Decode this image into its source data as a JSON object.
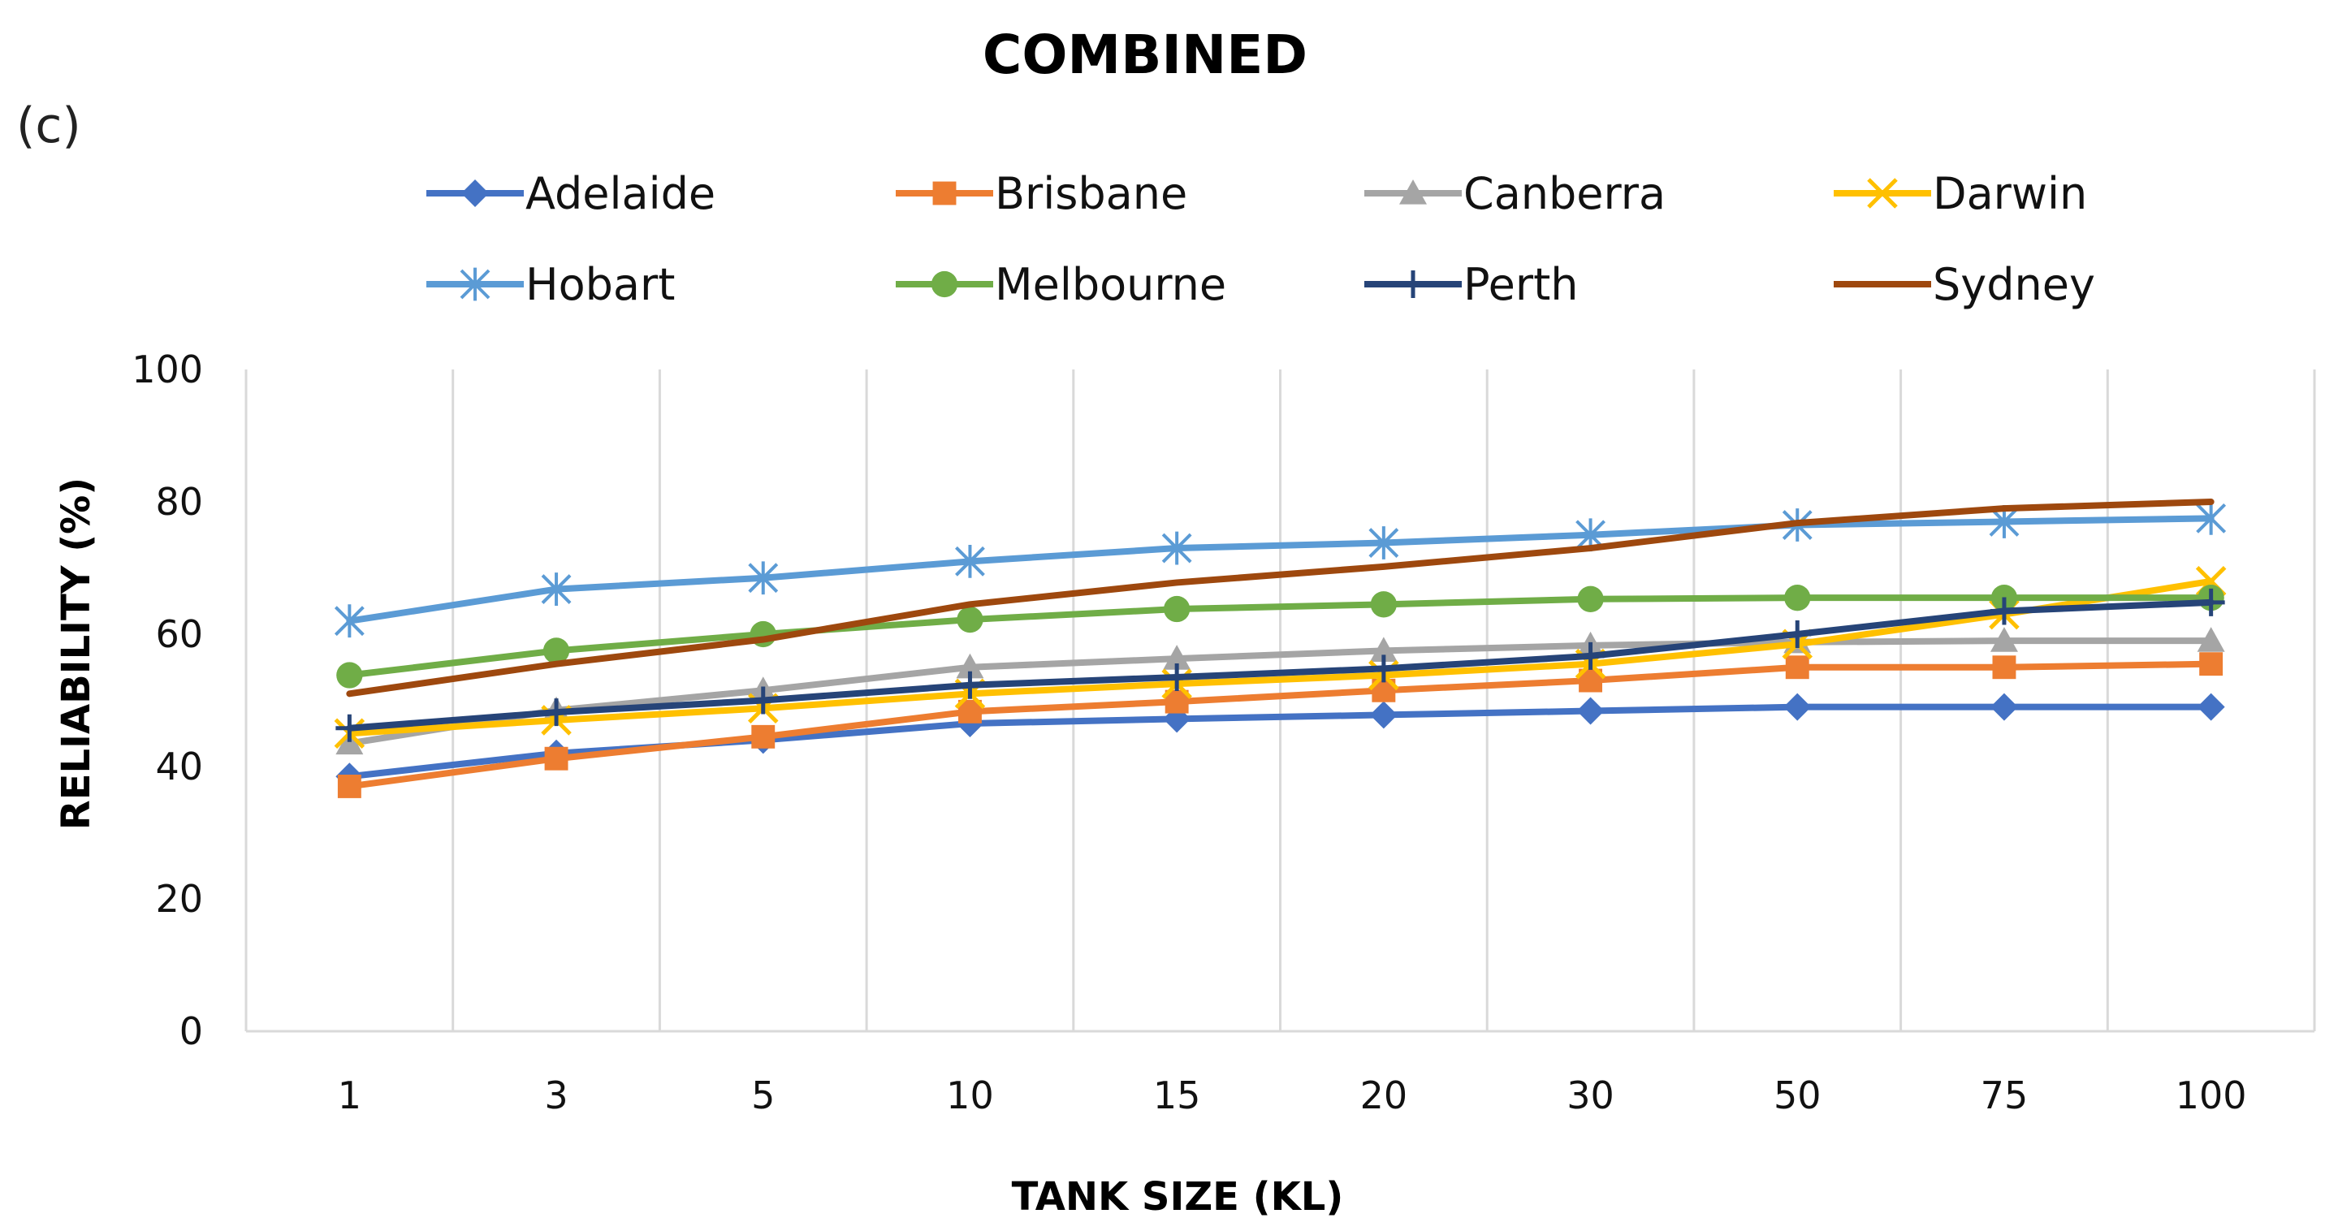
{
  "chart_data": {
    "type": "line",
    "title": "COMBINED",
    "panel_label": "(c)",
    "xlabel": "TANK SIZE (KL)",
    "ylabel": "RELIABILITY (%)",
    "categories": [
      "1",
      "3",
      "5",
      "10",
      "15",
      "20",
      "30",
      "50",
      "75",
      "100"
    ],
    "ylim": [
      0,
      100
    ],
    "yticks": [
      "0",
      "20",
      "40",
      "60",
      "80",
      "100"
    ],
    "grid": "vertical",
    "legend_position": "top",
    "series": [
      {
        "name": "Adelaide",
        "color": "#4472C4",
        "marker": "diamond",
        "values": [
          38.5,
          42,
          44,
          46.5,
          47.2,
          47.8,
          48.4,
          49,
          49,
          49
        ]
      },
      {
        "name": "Brisbane",
        "color": "#ED7D31",
        "marker": "square",
        "values": [
          37,
          41.2,
          44.5,
          48.3,
          49.8,
          51.5,
          53,
          55,
          55,
          55.5
        ]
      },
      {
        "name": "Canberra",
        "color": "#A5A5A5",
        "marker": "triangle",
        "values": [
          43.5,
          48.5,
          51.5,
          55,
          56.3,
          57.5,
          58.3,
          58.8,
          59,
          59
        ]
      },
      {
        "name": "Darwin",
        "color": "#FFC000",
        "marker": "x",
        "values": [
          45,
          47,
          48.8,
          51,
          52.5,
          53.8,
          55.5,
          58.5,
          63,
          68
        ]
      },
      {
        "name": "Hobart",
        "color": "#5B9BD5",
        "marker": "asterisk",
        "values": [
          62,
          66.8,
          68.5,
          71,
          73,
          73.8,
          75,
          76.5,
          77,
          77.5
        ]
      },
      {
        "name": "Melbourne",
        "color": "#70AD47",
        "marker": "circle",
        "values": [
          53.8,
          57.5,
          60,
          62.2,
          63.8,
          64.5,
          65.3,
          65.5,
          65.5,
          65.5
        ]
      },
      {
        "name": "Perth",
        "color": "#264478",
        "marker": "plus",
        "values": [
          45.8,
          48.2,
          50,
          52.3,
          53.5,
          54.8,
          56.7,
          60,
          63.5,
          64.8
        ]
      },
      {
        "name": "Sydney",
        "color": "#9E480E",
        "marker": "none",
        "values": [
          51,
          55.5,
          59.2,
          64.5,
          67.8,
          70.2,
          73,
          76.8,
          79,
          80
        ]
      }
    ]
  }
}
